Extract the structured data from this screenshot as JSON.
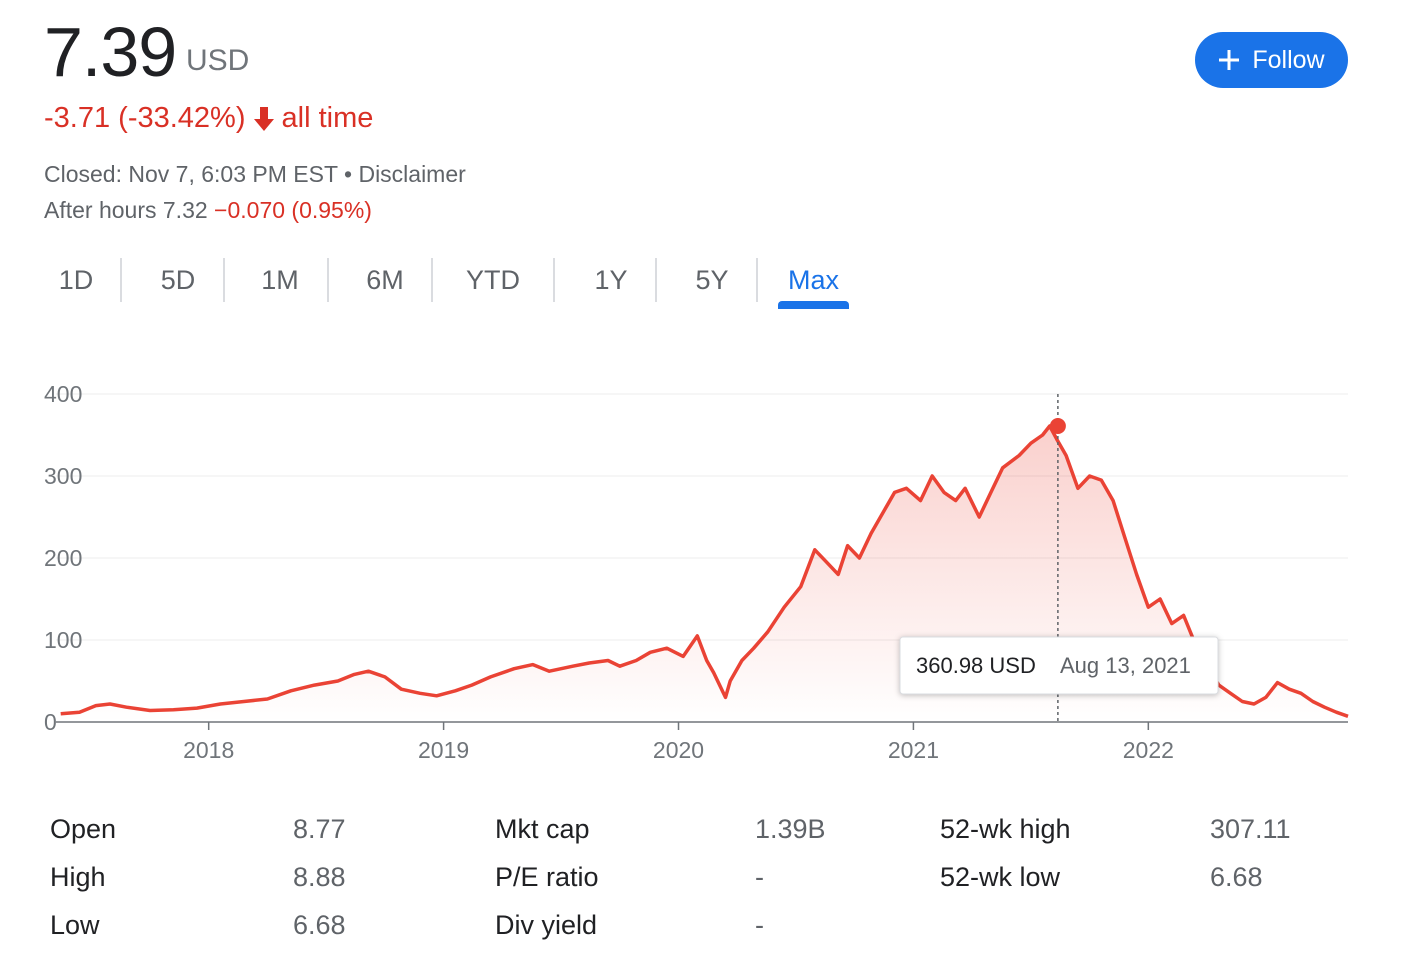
{
  "quote": {
    "price": "7.39",
    "currency": "USD",
    "change": "-3.71 (-33.42%)",
    "change_period": "all time",
    "closed_text": "Closed: Nov 7, 6:03 PM EST",
    "separator": "•",
    "disclaimer": "Disclaimer",
    "after_hours_label": "After hours 7.32",
    "after_hours_change": "−0.070 (0.95%)"
  },
  "follow_button": {
    "label": "Follow"
  },
  "tabs": [
    {
      "label": "1D"
    },
    {
      "label": "5D"
    },
    {
      "label": "1M"
    },
    {
      "label": "6M"
    },
    {
      "label": "YTD"
    },
    {
      "label": "1Y"
    },
    {
      "label": "5Y"
    },
    {
      "label": "Max",
      "active": true
    }
  ],
  "colors": {
    "line": "#ea4335",
    "accent": "#1a73e8",
    "negative": "#d93025"
  },
  "chart_data": {
    "type": "area",
    "x_unit": "year",
    "ylim": [
      0,
      400
    ],
    "xlim": [
      2017.35,
      2022.85
    ],
    "y_ticks": [
      "400",
      "300",
      "200",
      "100",
      "0"
    ],
    "x_ticks": [
      "2018",
      "2019",
      "2020",
      "2021",
      "2022"
    ],
    "grid": true,
    "series": [
      {
        "x": [
          2017.37,
          2017.45,
          2017.52,
          2017.58,
          2017.65,
          2017.75,
          2017.85,
          2017.95,
          2018.05,
          2018.15,
          2018.25,
          2018.35,
          2018.45,
          2018.55,
          2018.62,
          2018.68,
          2018.75,
          2018.82,
          2018.9,
          2018.97,
          2019.05,
          2019.12,
          2019.2,
          2019.3,
          2019.38,
          2019.45,
          2019.55,
          2019.62,
          2019.7,
          2019.75,
          2019.82,
          2019.88,
          2019.95,
          2020.02,
          2020.08,
          2020.12,
          2020.15,
          2020.2,
          2020.22,
          2020.27,
          2020.32,
          2020.38,
          2020.45,
          2020.52,
          2020.58,
          2020.63,
          2020.68,
          2020.72,
          2020.77,
          2020.82,
          2020.88,
          2020.92,
          2020.97,
          2021.03,
          2021.08,
          2021.13,
          2021.18,
          2021.22,
          2021.28,
          2021.33,
          2021.38,
          2021.45,
          2021.5,
          2021.55,
          2021.58,
          2021.61,
          2021.65,
          2021.7,
          2021.75,
          2021.8,
          2021.85,
          2021.9,
          2021.95,
          2022.0,
          2022.05,
          2022.1,
          2022.15,
          2022.2,
          2022.25,
          2022.3,
          2022.35,
          2022.4,
          2022.45,
          2022.5,
          2022.55,
          2022.6,
          2022.65,
          2022.7,
          2022.75,
          2022.8,
          2022.85
        ],
        "y": [
          10,
          12,
          20,
          22,
          18,
          14,
          15,
          17,
          22,
          25,
          28,
          38,
          45,
          50,
          58,
          62,
          55,
          40,
          35,
          32,
          38,
          45,
          55,
          65,
          70,
          62,
          68,
          72,
          75,
          68,
          75,
          85,
          90,
          80,
          105,
          75,
          60,
          30,
          50,
          75,
          90,
          110,
          140,
          165,
          210,
          195,
          180,
          215,
          200,
          230,
          260,
          280,
          285,
          270,
          300,
          280,
          270,
          285,
          250,
          280,
          310,
          325,
          340,
          350,
          361,
          345,
          325,
          285,
          300,
          295,
          270,
          225,
          180,
          140,
          150,
          120,
          130,
          95,
          70,
          45,
          35,
          25,
          22,
          30,
          48,
          40,
          35,
          25,
          18,
          12,
          7
        ]
      }
    ],
    "tooltip": {
      "value": "360.98 USD",
      "date": "Aug 13, 2021",
      "x": 2021.615,
      "y": 360.98
    }
  },
  "stats": {
    "col1": [
      {
        "label": "Open",
        "value": "8.77"
      },
      {
        "label": "High",
        "value": "8.88"
      },
      {
        "label": "Low",
        "value": "6.68"
      }
    ],
    "col2": [
      {
        "label": "Mkt cap",
        "value": "1.39B"
      },
      {
        "label": "P/E ratio",
        "value": "-"
      },
      {
        "label": "Div yield",
        "value": "-"
      }
    ],
    "col3": [
      {
        "label": "52-wk high",
        "value": "307.11"
      },
      {
        "label": "52-wk low",
        "value": "6.68"
      }
    ]
  }
}
